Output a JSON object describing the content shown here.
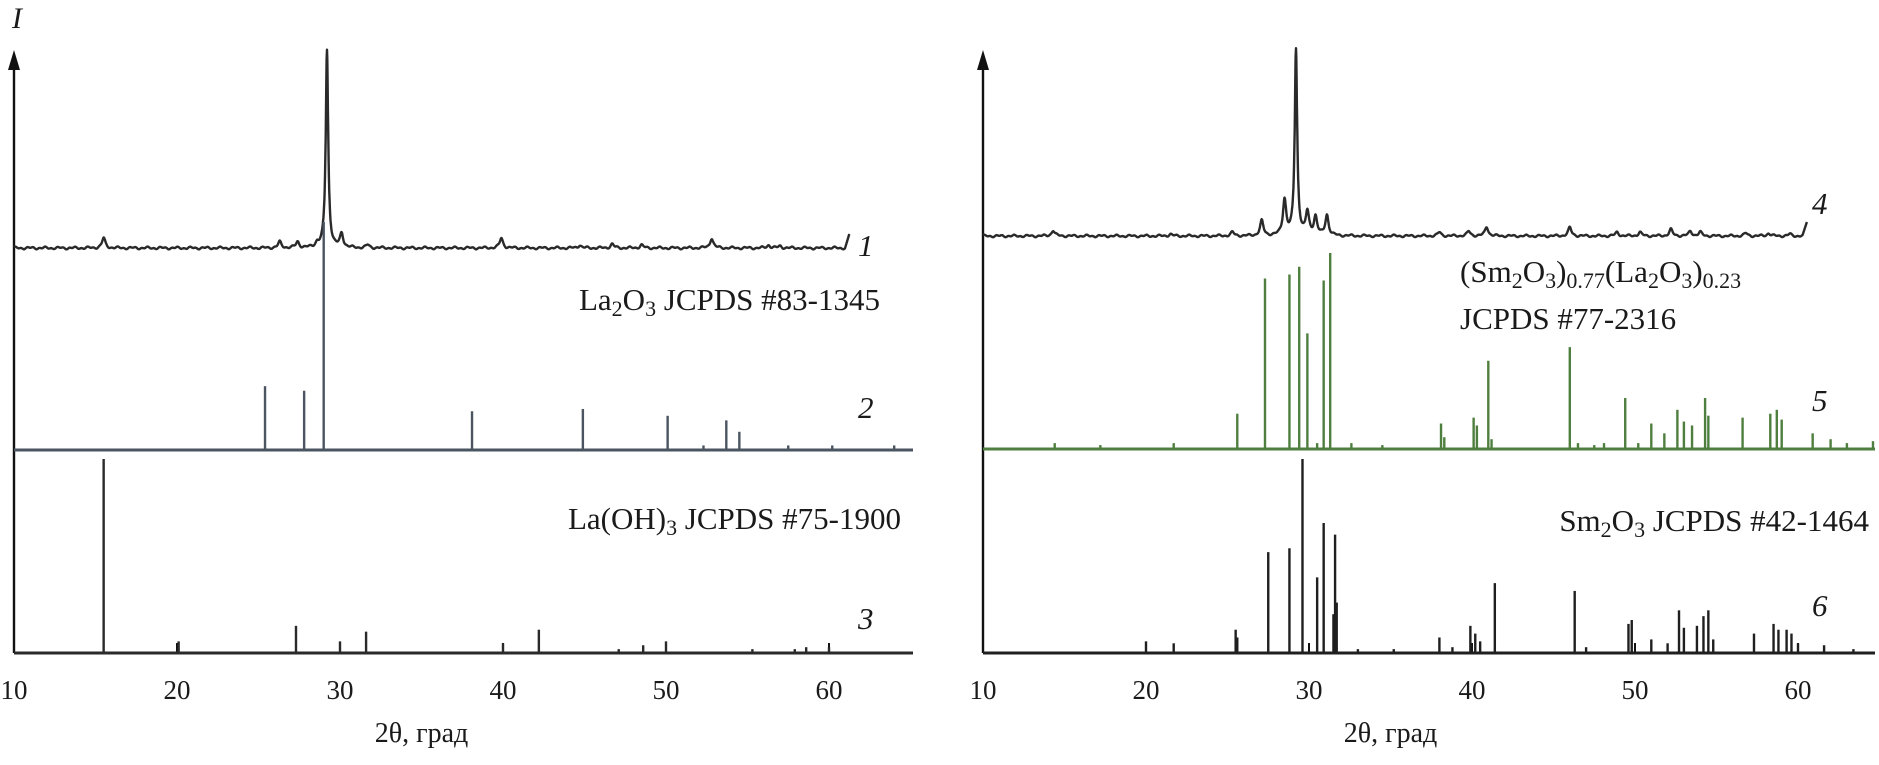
{
  "colors": {
    "measured": "#2a2a2a",
    "la2o3_ref": "#4a5561",
    "la_oh3_ref": "#2a2a2a",
    "mixed_ref": "#4f7f3f",
    "sm2o3_ref": "#1f1f1f"
  },
  "chart_data": [
    {
      "type": "line",
      "panel": "left",
      "ylabel": "I",
      "xlabel": "2θ, град",
      "xlim": [
        10,
        65
      ],
      "xticks": [
        "10",
        "20",
        "30",
        "40",
        "50",
        "60"
      ],
      "grid": false,
      "patterns": [
        {
          "id": "1",
          "style": "profile",
          "label_parts": [],
          "xrange": [
            10,
            61
          ],
          "peaks": [
            [
              15.5,
              0.05
            ],
            [
              26.3,
              0.03
            ],
            [
              27.4,
              0.03
            ],
            [
              28.6,
              0.02
            ],
            [
              29.2,
              1.0
            ],
            [
              30.1,
              0.07
            ],
            [
              31.7,
              0.015
            ],
            [
              39.9,
              0.05
            ],
            [
              44.7,
              0.015
            ],
            [
              46.7,
              0.02
            ],
            [
              48.5,
              0.015
            ],
            [
              52.8,
              0.05
            ],
            [
              56.3,
              0.015
            ],
            [
              57.0,
              0.01
            ]
          ]
        },
        {
          "id": "2",
          "style": "sticks",
          "label_parts": [
            {
              "t": "La"
            },
            {
              "sub": "2"
            },
            {
              "t": "O"
            },
            {
              "sub": "3"
            },
            {
              "t": " JCPDS #83-1345"
            }
          ],
          "peaks": [
            [
              25.4,
              0.28
            ],
            [
              27.8,
              0.26
            ],
            [
              29.0,
              1.0
            ],
            [
              38.1,
              0.17
            ],
            [
              44.9,
              0.18
            ],
            [
              50.1,
              0.15
            ],
            [
              52.3,
              0.02
            ],
            [
              53.7,
              0.13
            ],
            [
              54.5,
              0.08
            ],
            [
              57.5,
              0.02
            ],
            [
              60.2,
              0.02
            ],
            [
              64.0,
              0.02
            ]
          ]
        },
        {
          "id": "3",
          "style": "sticks",
          "label_parts": [
            {
              "t": "La(OH)"
            },
            {
              "sub": "3"
            },
            {
              "t": " JCPDS #75-1900"
            }
          ],
          "peaks": [
            [
              15.5,
              1.0
            ],
            [
              20.1,
              0.06
            ],
            [
              27.3,
              0.14
            ],
            [
              30.0,
              0.06
            ],
            [
              31.6,
              0.11
            ],
            [
              40.0,
              0.05
            ],
            [
              42.2,
              0.12
            ],
            [
              47.1,
              0.02
            ],
            [
              48.6,
              0.04
            ],
            [
              50.0,
              0.06
            ],
            [
              55.3,
              0.02
            ],
            [
              57.9,
              0.02
            ],
            [
              58.6,
              0.03
            ],
            [
              60.0,
              0.03
            ]
          ]
        }
      ]
    },
    {
      "type": "line",
      "panel": "right",
      "ylabel": "",
      "xlabel": "2θ, град",
      "xlim": [
        10,
        64.8
      ],
      "xticks": [
        "10",
        "20",
        "30",
        "40",
        "50",
        "60"
      ],
      "grid": false,
      "patterns": [
        {
          "id": "4",
          "style": "profile",
          "label_parts": [],
          "xrange": [
            10,
            60.3
          ],
          "peaks": [
            [
              14.3,
              0.03
            ],
            [
              21.5,
              0.01
            ],
            [
              25.3,
              0.02
            ],
            [
              27.1,
              0.08
            ],
            [
              28.5,
              0.19
            ],
            [
              29.2,
              1.0
            ],
            [
              29.9,
              0.12
            ],
            [
              30.4,
              0.1
            ],
            [
              31.1,
              0.11
            ],
            [
              38.0,
              0.02
            ],
            [
              39.8,
              0.025
            ],
            [
              40.9,
              0.05
            ],
            [
              46.0,
              0.045
            ],
            [
              48.9,
              0.02
            ],
            [
              50.3,
              0.02
            ],
            [
              52.2,
              0.035
            ],
            [
              53.4,
              0.025
            ],
            [
              54.0,
              0.02
            ],
            [
              56.8,
              0.015
            ],
            [
              58.2,
              0.015
            ],
            [
              59.5,
              0.01
            ]
          ]
        },
        {
          "id": "5",
          "style": "sticks",
          "label_parts": [
            {
              "t": "(Sm"
            },
            {
              "sub": "2"
            },
            {
              "t": "O"
            },
            {
              "sub": "3"
            },
            {
              "t": ")"
            },
            {
              "sub": "0.77"
            },
            {
              "t": "(La"
            },
            {
              "sub": "2"
            },
            {
              "t": "O"
            },
            {
              "sub": "3"
            },
            {
              "t": ")"
            },
            {
              "sub": "0.23"
            }
          ],
          "label_line2": "JCPDS #77-2316",
          "peaks": [
            [
              14.4,
              0.03
            ],
            [
              17.2,
              0.02
            ],
            [
              21.7,
              0.03
            ],
            [
              25.6,
              0.18
            ],
            [
              27.3,
              0.87
            ],
            [
              28.8,
              0.89
            ],
            [
              29.4,
              0.93
            ],
            [
              29.9,
              0.59
            ],
            [
              30.5,
              0.03
            ],
            [
              30.9,
              0.86
            ],
            [
              31.3,
              1.0
            ],
            [
              32.6,
              0.03
            ],
            [
              34.5,
              0.02
            ],
            [
              38.1,
              0.13
            ],
            [
              38.3,
              0.06
            ],
            [
              40.1,
              0.16
            ],
            [
              40.3,
              0.12
            ],
            [
              41.0,
              0.45
            ],
            [
              41.2,
              0.05
            ],
            [
              46.0,
              0.52
            ],
            [
              46.5,
              0.03
            ],
            [
              47.5,
              0.02
            ],
            [
              48.1,
              0.03
            ],
            [
              49.4,
              0.26
            ],
            [
              50.2,
              0.03
            ],
            [
              51.0,
              0.13
            ],
            [
              51.8,
              0.08
            ],
            [
              52.6,
              0.2
            ],
            [
              53.0,
              0.14
            ],
            [
              53.5,
              0.12
            ],
            [
              54.3,
              0.26
            ],
            [
              54.5,
              0.17
            ],
            [
              56.6,
              0.16
            ],
            [
              58.3,
              0.18
            ],
            [
              58.7,
              0.2
            ],
            [
              59.0,
              0.15
            ],
            [
              60.9,
              0.08
            ],
            [
              62.0,
              0.05
            ],
            [
              63.0,
              0.03
            ],
            [
              64.6,
              0.04
            ]
          ]
        },
        {
          "id": "6",
          "style": "sticks",
          "label_parts": [
            {
              "t": "Sm"
            },
            {
              "sub": "2"
            },
            {
              "t": "O"
            },
            {
              "sub": "3"
            },
            {
              "t": " JCPDS #42-1464"
            }
          ],
          "peaks": [
            [
              20.0,
              0.06
            ],
            [
              21.7,
              0.05
            ],
            [
              25.5,
              0.12
            ],
            [
              25.6,
              0.08
            ],
            [
              27.5,
              0.52
            ],
            [
              28.8,
              0.54
            ],
            [
              29.6,
              1.0
            ],
            [
              30.5,
              0.39
            ],
            [
              30.9,
              0.67
            ],
            [
              31.5,
              0.2
            ],
            [
              31.6,
              0.61
            ],
            [
              31.7,
              0.26
            ],
            [
              33.0,
              0.02
            ],
            [
              35.2,
              0.02
            ],
            [
              38.0,
              0.08
            ],
            [
              38.8,
              0.03
            ],
            [
              39.9,
              0.14
            ],
            [
              40.2,
              0.1
            ],
            [
              40.5,
              0.06
            ],
            [
              41.4,
              0.36
            ],
            [
              46.3,
              0.32
            ],
            [
              47.0,
              0.03
            ],
            [
              49.6,
              0.15
            ],
            [
              49.8,
              0.17
            ],
            [
              51.0,
              0.07
            ],
            [
              52.0,
              0.05
            ],
            [
              52.7,
              0.22
            ],
            [
              53.0,
              0.13
            ],
            [
              53.8,
              0.14
            ],
            [
              54.2,
              0.19
            ],
            [
              54.5,
              0.22
            ],
            [
              54.8,
              0.07
            ],
            [
              57.3,
              0.1
            ],
            [
              58.5,
              0.15
            ],
            [
              58.8,
              0.12
            ],
            [
              59.3,
              0.12
            ],
            [
              59.6,
              0.1
            ],
            [
              60.0,
              0.05
            ],
            [
              61.6,
              0.04
            ],
            [
              63.4,
              0.02
            ]
          ]
        }
      ]
    }
  ]
}
